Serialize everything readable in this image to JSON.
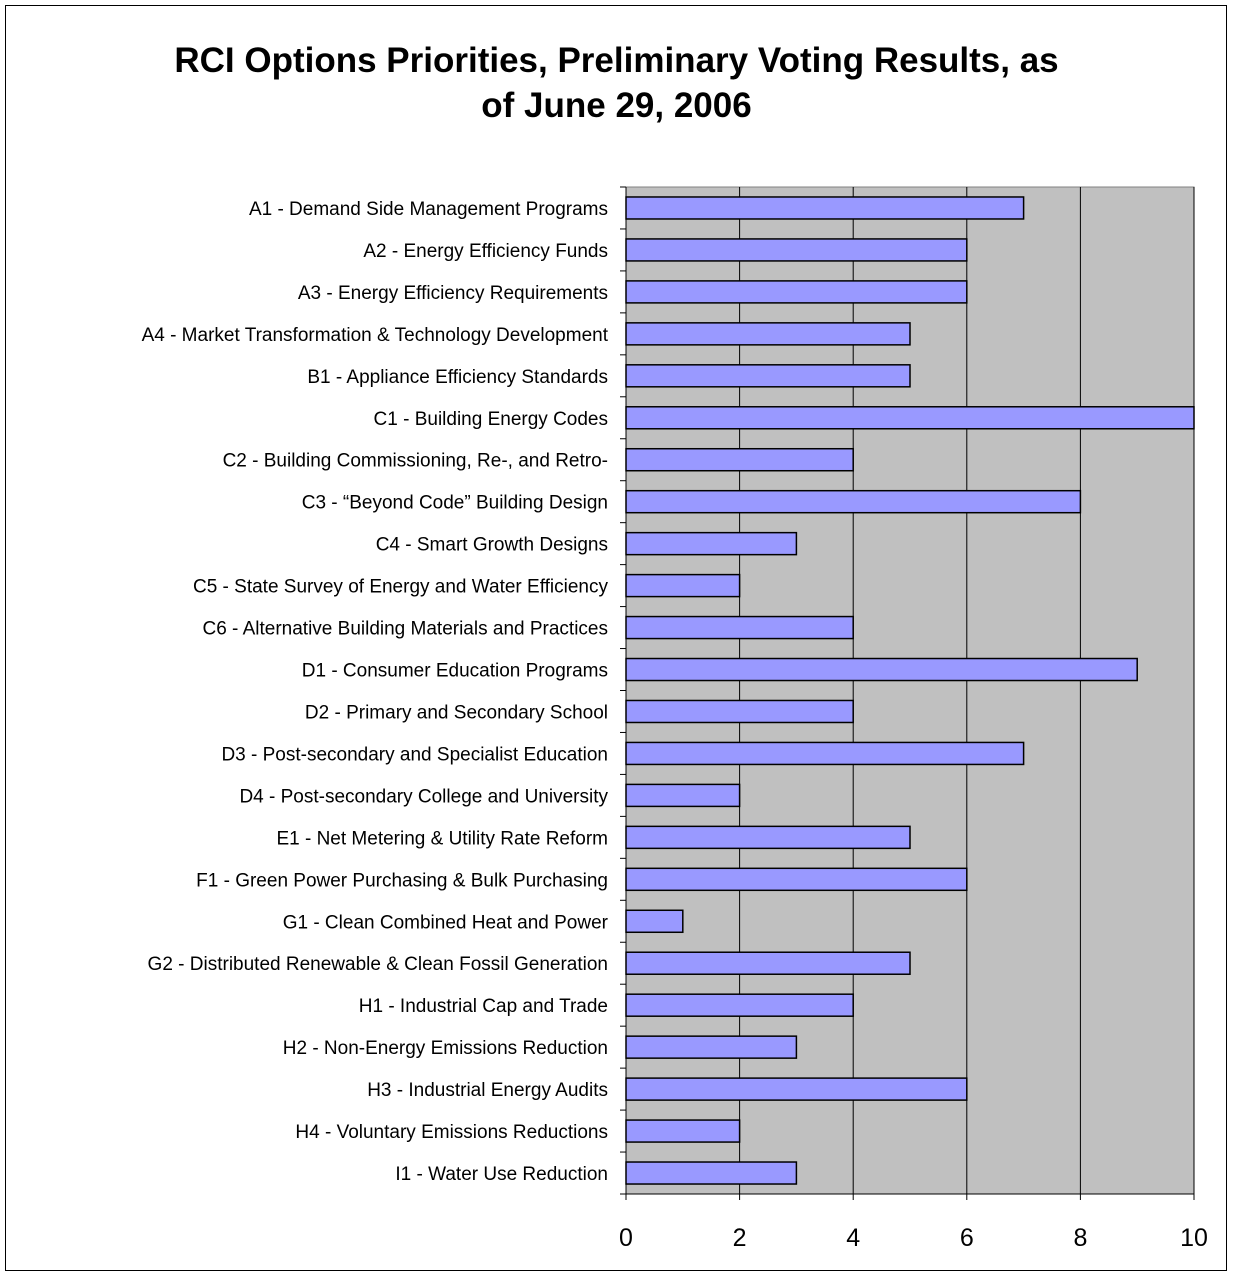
{
  "chart_data": {
    "type": "bar",
    "orientation": "horizontal",
    "title_lines": [
      "RCI Options Priorities, Preliminary Voting Results, as",
      "of June 29, 2006"
    ],
    "categories": [
      "A1 - Demand Side Management Programs",
      "A2 - Energy Efficiency Funds",
      "A3 - Energy Efficiency Requirements",
      "A4 - Market Transformation & Technology Development",
      "B1 - Appliance Efficiency Standards",
      "C1 - Building Energy Codes",
      "C2 - Building Commissioning, Re-, and Retro-",
      "C3 - “Beyond Code” Building Design",
      "C4 - Smart Growth Designs",
      "C5 - State Survey of Energy and Water Efficiency",
      "C6 - Alternative Building Materials and Practices",
      "D1 - Consumer Education Programs",
      "D2 - Primary and Secondary School",
      "D3 - Post-secondary and Specialist Education",
      "D4 - Post-secondary College and University",
      "E1 - Net Metering & Utility Rate Reform",
      "F1 - Green Power Purchasing & Bulk Purchasing",
      "G1 - Clean Combined Heat and Power",
      "G2 - Distributed Renewable & Clean Fossil Generation",
      "H1 - Industrial Cap and Trade",
      "H2 - Non-Energy Emissions Reduction",
      "H3 - Industrial Energy Audits",
      "H4 - Voluntary Emissions Reductions",
      "I1 - Water Use Reduction"
    ],
    "values": [
      7,
      6,
      6,
      5,
      5,
      10,
      4,
      8,
      3,
      2,
      4,
      9,
      4,
      7,
      2,
      5,
      6,
      1,
      5,
      4,
      3,
      6,
      2,
      3
    ],
    "xlim": [
      0,
      10
    ],
    "xticks": [
      "0",
      "2",
      "4",
      "6",
      "8",
      "10"
    ],
    "xlabel": "",
    "ylabel": "",
    "grid": "vertical major gridlines",
    "legend": "none",
    "colors": {
      "bar_fill": "#9999ff",
      "bar_stroke": "#000000",
      "plot_background": "#c0c0c0",
      "gridline": "#000000"
    }
  }
}
